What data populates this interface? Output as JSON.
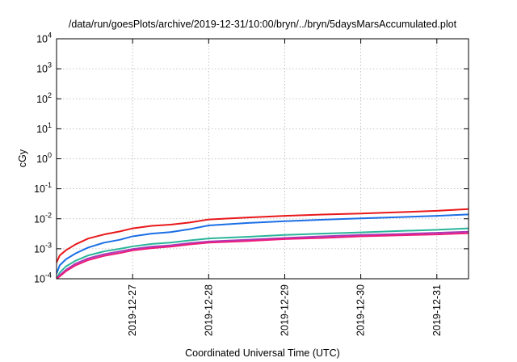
{
  "chart_data": {
    "type": "line",
    "title": "/data/run/goesPlots/archive/2019-12-31/10:00/bryn/../bryn/5daysMarsAccumulated.plot",
    "xlabel": "Coordinated Universal Time (UTC)",
    "ylabel": "cGy",
    "x_scale": "time",
    "y_scale": "log",
    "xlim": [
      "2019-12-26T00:00",
      "2019-12-31T10:00"
    ],
    "ylim": [
      0.0001,
      10000
    ],
    "grid": true,
    "legend": "none",
    "x_ticks": [
      "2019-12-27",
      "2019-12-28",
      "2019-12-29",
      "2019-12-30",
      "2019-12-31"
    ],
    "y_ticks": [
      {
        "value": 0.0001,
        "base": "10",
        "exp": "-4"
      },
      {
        "value": 0.001,
        "base": "10",
        "exp": "-3"
      },
      {
        "value": 0.01,
        "base": "10",
        "exp": "-2"
      },
      {
        "value": 0.1,
        "base": "10",
        "exp": "-1"
      },
      {
        "value": 1,
        "base": "10",
        "exp": "0"
      },
      {
        "value": 10,
        "base": "10",
        "exp": "1"
      },
      {
        "value": 100,
        "base": "10",
        "exp": "2"
      },
      {
        "value": 1000,
        "base": "10",
        "exp": "3"
      },
      {
        "value": 10000,
        "base": "10",
        "exp": "4"
      }
    ],
    "series": [
      {
        "color": "#e8181b",
        "x": [
          "2019-12-26T00:00",
          "2019-12-26T01:00",
          "2019-12-26T03:00",
          "2019-12-26T06:00",
          "2019-12-26T10:00",
          "2019-12-26T15:00",
          "2019-12-26T20:00",
          "2019-12-27T00:00",
          "2019-12-27T06:00",
          "2019-12-27T12:00",
          "2019-12-27T18:00",
          "2019-12-28T00:00",
          "2019-12-28T12:00",
          "2019-12-29T00:00",
          "2019-12-29T12:00",
          "2019-12-30T00:00",
          "2019-12-30T12:00",
          "2019-12-31T00:00",
          "2019-12-31T10:00"
        ],
        "y": [
          0.00035,
          0.0006,
          0.0009,
          0.0014,
          0.0022,
          0.003,
          0.0038,
          0.0048,
          0.0058,
          0.0064,
          0.0075,
          0.0095,
          0.011,
          0.0125,
          0.0138,
          0.015,
          0.0165,
          0.0185,
          0.021
        ]
      },
      {
        "color": "#1c6fe6",
        "x": [
          "2019-12-26T00:00",
          "2019-12-26T01:00",
          "2019-12-26T03:00",
          "2019-12-26T06:00",
          "2019-12-26T10:00",
          "2019-12-26T15:00",
          "2019-12-26T20:00",
          "2019-12-27T00:00",
          "2019-12-27T06:00",
          "2019-12-27T12:00",
          "2019-12-27T18:00",
          "2019-12-28T00:00",
          "2019-12-28T12:00",
          "2019-12-29T00:00",
          "2019-12-29T12:00",
          "2019-12-30T00:00",
          "2019-12-30T12:00",
          "2019-12-31T00:00",
          "2019-12-31T10:00"
        ],
        "y": [
          0.00015,
          0.00028,
          0.00045,
          0.0007,
          0.0011,
          0.0016,
          0.002,
          0.0026,
          0.0032,
          0.0036,
          0.0045,
          0.006,
          0.0072,
          0.0083,
          0.0093,
          0.0103,
          0.0113,
          0.0125,
          0.014
        ]
      },
      {
        "color": "#2ab59a",
        "x": [
          "2019-12-26T00:00",
          "2019-12-26T01:00",
          "2019-12-26T03:00",
          "2019-12-26T06:00",
          "2019-12-26T10:00",
          "2019-12-26T15:00",
          "2019-12-26T20:00",
          "2019-12-27T00:00",
          "2019-12-27T06:00",
          "2019-12-27T12:00",
          "2019-12-27T18:00",
          "2019-12-28T00:00",
          "2019-12-28T12:00",
          "2019-12-29T00:00",
          "2019-12-29T12:00",
          "2019-12-30T00:00",
          "2019-12-30T12:00",
          "2019-12-31T00:00",
          "2019-12-31T10:00"
        ],
        "y": [
          0.0001,
          0.00016,
          0.00026,
          0.0004,
          0.0006,
          0.00082,
          0.001,
          0.0012,
          0.00145,
          0.0016,
          0.0019,
          0.0022,
          0.0025,
          0.0029,
          0.0032,
          0.0035,
          0.0039,
          0.0043,
          0.0048
        ]
      },
      {
        "color": "#a83ab8",
        "x": [
          "2019-12-26T00:00",
          "2019-12-26T01:00",
          "2019-12-26T03:00",
          "2019-12-26T06:00",
          "2019-12-26T10:00",
          "2019-12-26T15:00",
          "2019-12-26T20:00",
          "2019-12-27T00:00",
          "2019-12-27T06:00",
          "2019-12-27T12:00",
          "2019-12-27T18:00",
          "2019-12-28T00:00",
          "2019-12-28T12:00",
          "2019-12-29T00:00",
          "2019-12-29T12:00",
          "2019-12-30T00:00",
          "2019-12-30T12:00",
          "2019-12-31T00:00",
          "2019-12-31T10:00"
        ],
        "y": [
          0.0001,
          0.00013,
          0.0002,
          0.00032,
          0.00048,
          0.00066,
          0.00082,
          0.00098,
          0.00118,
          0.0013,
          0.00155,
          0.00175,
          0.002,
          0.0023,
          0.0026,
          0.0029,
          0.0031,
          0.0034,
          0.0037
        ]
      },
      {
        "color": "#ef1c7a",
        "x": [
          "2019-12-26T00:00",
          "2019-12-26T01:00",
          "2019-12-26T03:00",
          "2019-12-26T06:00",
          "2019-12-26T10:00",
          "2019-12-26T15:00",
          "2019-12-26T20:00",
          "2019-12-27T00:00",
          "2019-12-27T06:00",
          "2019-12-27T12:00",
          "2019-12-27T18:00",
          "2019-12-28T00:00",
          "2019-12-28T12:00",
          "2019-12-29T00:00",
          "2019-12-29T12:00",
          "2019-12-30T00:00",
          "2019-12-30T12:00",
          "2019-12-31T00:00",
          "2019-12-31T10:00"
        ],
        "y": [
          0.0001,
          0.00012,
          0.00018,
          0.00028,
          0.00042,
          0.00058,
          0.00072,
          0.00088,
          0.00105,
          0.00118,
          0.0014,
          0.0016,
          0.0018,
          0.0021,
          0.0023,
          0.0026,
          0.0028,
          0.003,
          0.0033
        ]
      }
    ]
  }
}
